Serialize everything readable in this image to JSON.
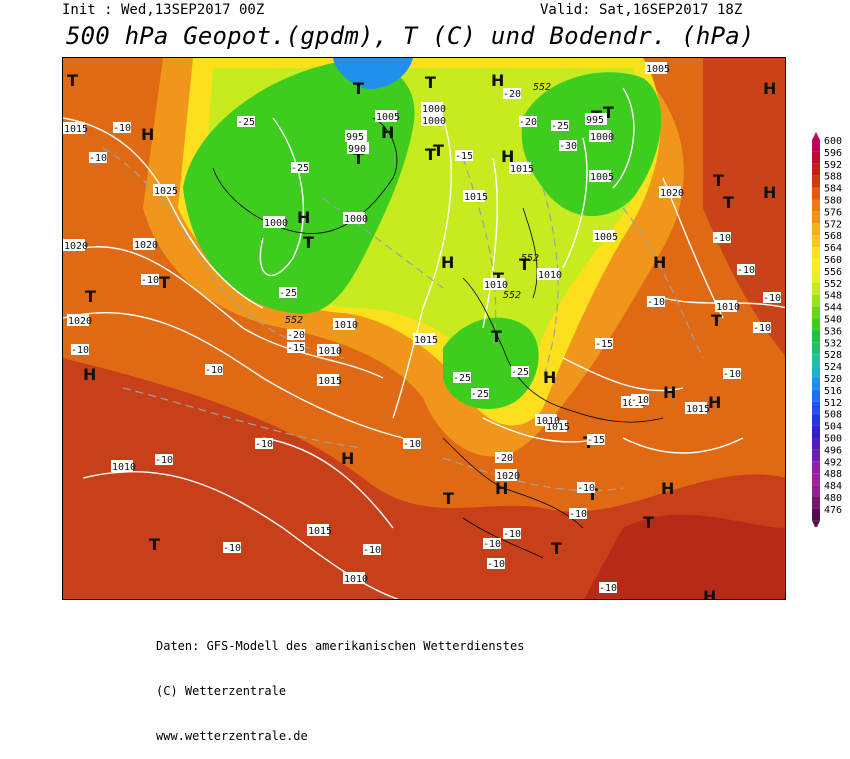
{
  "header": {
    "init": "Init : Wed,13SEP2017 00Z",
    "valid": "Valid: Sat,16SEP2017 18Z",
    "title": "500 hPa Geopot.(gpdm), T (C) und Bodendr. (hPa)"
  },
  "legend": {
    "levels": [
      "600",
      "596",
      "592",
      "588",
      "584",
      "580",
      "576",
      "572",
      "568",
      "564",
      "560",
      "556",
      "552",
      "548",
      "544",
      "540",
      "536",
      "532",
      "528",
      "524",
      "520",
      "516",
      "512",
      "508",
      "504",
      "500",
      "496",
      "492",
      "488",
      "484",
      "480",
      "476"
    ],
    "colors": [
      "#c0005a",
      "#b8102a",
      "#c82010",
      "#d03a10",
      "#e05a14",
      "#ea7a16",
      "#f09418",
      "#f6ae1a",
      "#fac81c",
      "#fce01e",
      "#f8f020",
      "#e6f020",
      "#c6ec20",
      "#9ee21e",
      "#6ed61e",
      "#3ecc1e",
      "#20c040",
      "#20c070",
      "#20c0a0",
      "#20b0d0",
      "#2090ec",
      "#2070f0",
      "#2050f0",
      "#2038e0",
      "#3020c8",
      "#5020b8",
      "#7020b0",
      "#9020a8",
      "#a020a0",
      "#902090",
      "#701870",
      "#501050"
    ]
  },
  "map": {
    "highs": [
      "H",
      "H",
      "H",
      "H",
      "H",
      "H",
      "H",
      "H",
      "H",
      "H",
      "H",
      "H",
      "H",
      "H",
      "H",
      "H",
      "H"
    ],
    "lows": [
      "T",
      "T",
      "T",
      "T",
      "T",
      "T",
      "T",
      "T",
      "T",
      "T",
      "T",
      "T",
      "T",
      "T",
      "T",
      "T",
      "T",
      "T",
      "T",
      "T",
      "T",
      "T",
      "T"
    ],
    "pressure_labels": [
      "1015",
      "1025",
      "1020",
      "1020",
      "1005",
      "995",
      "990",
      "1000",
      "1000",
      "1000",
      "1000",
      "1005",
      "1010",
      "1015",
      "1020",
      "1015",
      "1020",
      "1010",
      "1005",
      "1000",
      "995",
      "1005",
      "1010",
      "1015",
      "1010",
      "1010",
      "1015",
      "1010",
      "1015",
      "1010",
      "1020",
      "1015",
      "1005",
      "1015",
      "1010"
    ],
    "temp_labels": [
      "-10",
      "-10",
      "-10",
      "-25",
      "-25",
      "-25",
      "-20",
      "-20",
      "-30",
      "-25",
      "-15",
      "-15",
      "-20",
      "-15",
      "-10",
      "-10",
      "-10",
      "-10",
      "-25",
      "-25",
      "-25",
      "-20",
      "-15",
      "-10",
      "-10",
      "-10",
      "-10",
      "-10",
      "-10",
      "-10",
      "-10",
      "-10",
      "-10",
      "-10",
      "-10",
      "-10",
      "-10",
      "-10",
      "-10"
    ],
    "geopot_labels": [
      "552",
      "552",
      "552",
      "552"
    ]
  },
  "footer": {
    "line1": "Daten: GFS-Modell des amerikanischen Wetterdienstes",
    "line2": "(C) Wetterzentrale",
    "line3": "www.wetterzentrale.de"
  }
}
